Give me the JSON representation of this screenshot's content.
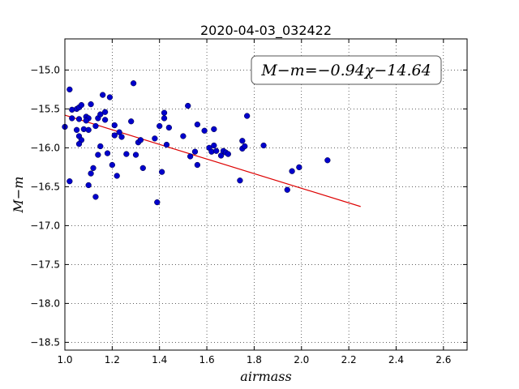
{
  "chart_data": {
    "type": "scatter",
    "title": "2020-04-03_032422",
    "xlabel": "airmass",
    "ylabel": "M−m",
    "xlim": [
      1.0,
      2.7
    ],
    "ylim": [
      -18.6,
      -14.6
    ],
    "y_inverted": true,
    "grid": true,
    "xticks": [
      1.0,
      1.2,
      1.4,
      1.6,
      1.8,
      2.0,
      2.2,
      2.4,
      2.6
    ],
    "xtick_labels": [
      "1.0",
      "1.2",
      "1.4",
      "1.6",
      "1.8",
      "2.0",
      "2.2",
      "2.4",
      "2.6"
    ],
    "yticks": [
      -15.0,
      -15.5,
      -16.0,
      -16.5,
      -17.0,
      -17.5,
      -18.0,
      -18.5
    ],
    "ytick_labels": [
      "−15.0",
      "−15.5",
      "−16.0",
      "−16.5",
      "−17.0",
      "−17.5",
      "−18.0",
      "−18.5"
    ],
    "annotation": "M−m=−0.94χ−14.64",
    "point_color": "#0000cc",
    "fit_color": "#dd0000",
    "fit_line": {
      "slope": -0.94,
      "intercept": -14.64,
      "x_start": 1.0,
      "x_end": 2.25
    },
    "points": [
      [
        1.0,
        -15.73
      ],
      [
        1.02,
        -15.25
      ],
      [
        1.03,
        -15.51
      ],
      [
        1.05,
        -15.5
      ],
      [
        1.06,
        -15.48
      ],
      [
        1.07,
        -15.45
      ],
      [
        1.03,
        -15.62
      ],
      [
        1.06,
        -15.63
      ],
      [
        1.09,
        -15.6
      ],
      [
        1.1,
        -15.62
      ],
      [
        1.09,
        -15.65
      ],
      [
        1.05,
        -15.77
      ],
      [
        1.08,
        -15.76
      ],
      [
        1.1,
        -15.77
      ],
      [
        1.06,
        -15.85
      ],
      [
        1.07,
        -15.9
      ],
      [
        1.06,
        -15.95
      ],
      [
        1.11,
        -15.44
      ],
      [
        1.13,
        -15.72
      ],
      [
        1.14,
        -15.62
      ],
      [
        1.15,
        -15.57
      ],
      [
        1.16,
        -15.32
      ],
      [
        1.17,
        -15.54
      ],
      [
        1.17,
        -15.64
      ],
      [
        1.19,
        -15.35
      ],
      [
        1.21,
        -15.71
      ],
      [
        1.21,
        -15.84
      ],
      [
        1.23,
        -15.8
      ],
      [
        1.24,
        -15.86
      ],
      [
        1.15,
        -15.98
      ],
      [
        1.14,
        -16.09
      ],
      [
        1.18,
        -16.07
      ],
      [
        1.11,
        -16.33
      ],
      [
        1.12,
        -16.26
      ],
      [
        1.1,
        -16.48
      ],
      [
        1.13,
        -16.63
      ],
      [
        1.02,
        -16.43
      ],
      [
        1.2,
        -16.22
      ],
      [
        1.22,
        -16.36
      ],
      [
        1.26,
        -16.08
      ],
      [
        1.28,
        -15.66
      ],
      [
        1.29,
        -15.17
      ],
      [
        1.3,
        -16.09
      ],
      [
        1.31,
        -15.93
      ],
      [
        1.32,
        -15.9
      ],
      [
        1.33,
        -16.26
      ],
      [
        1.38,
        -15.88
      ],
      [
        1.4,
        -15.72
      ],
      [
        1.42,
        -15.62
      ],
      [
        1.42,
        -15.55
      ],
      [
        1.43,
        -15.96
      ],
      [
        1.44,
        -15.74
      ],
      [
        1.41,
        -16.31
      ],
      [
        1.39,
        -16.7
      ],
      [
        1.5,
        -15.85
      ],
      [
        1.52,
        -15.46
      ],
      [
        1.53,
        -16.11
      ],
      [
        1.55,
        -16.05
      ],
      [
        1.56,
        -16.22
      ],
      [
        1.56,
        -15.7
      ],
      [
        1.59,
        -15.78
      ],
      [
        1.61,
        -16.0
      ],
      [
        1.62,
        -16.05
      ],
      [
        1.63,
        -15.76
      ],
      [
        1.63,
        -15.97
      ],
      [
        1.64,
        -16.04
      ],
      [
        1.66,
        -16.1
      ],
      [
        1.67,
        -16.04
      ],
      [
        1.68,
        -16.06
      ],
      [
        1.69,
        -16.08
      ],
      [
        1.74,
        -16.42
      ],
      [
        1.75,
        -15.91
      ],
      [
        1.75,
        -16.01
      ],
      [
        1.76,
        -15.98
      ],
      [
        1.77,
        -15.59
      ],
      [
        1.84,
        -15.97
      ],
      [
        1.94,
        -16.54
      ],
      [
        1.96,
        -16.3
      ],
      [
        1.99,
        -16.25
      ],
      [
        2.11,
        -16.16
      ]
    ]
  }
}
